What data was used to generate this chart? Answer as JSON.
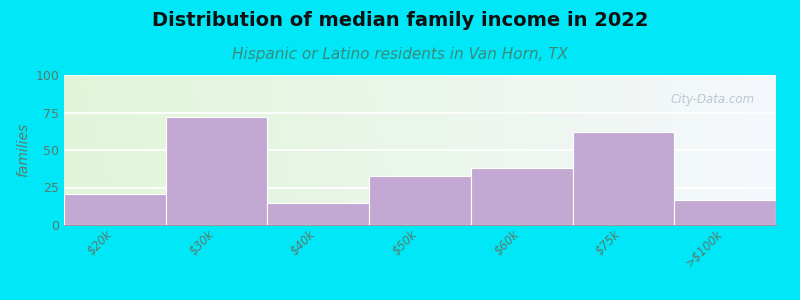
{
  "title": "Distribution of median family income in 2022",
  "subtitle": "Hispanic or Latino residents in Van Horn, TX",
  "categories": [
    "$20k",
    "$30k",
    "$40k",
    "$50k",
    "$60k",
    "$75k",
    ">$100k"
  ],
  "values": [
    21,
    72,
    15,
    33,
    38,
    62,
    17
  ],
  "bar_color": "#c4a8d4",
  "background_outer": "#00e8f8",
  "ylabel": "families",
  "ylim": [
    0,
    100
  ],
  "yticks": [
    0,
    25,
    50,
    75,
    100
  ],
  "title_fontsize": 14,
  "subtitle_fontsize": 11,
  "watermark": "City-Data.com",
  "tick_label_color": "#5a7a6a",
  "ylabel_color": "#5a7a6a",
  "title_color": "#111111",
  "subtitle_color": "#3a8a7a"
}
